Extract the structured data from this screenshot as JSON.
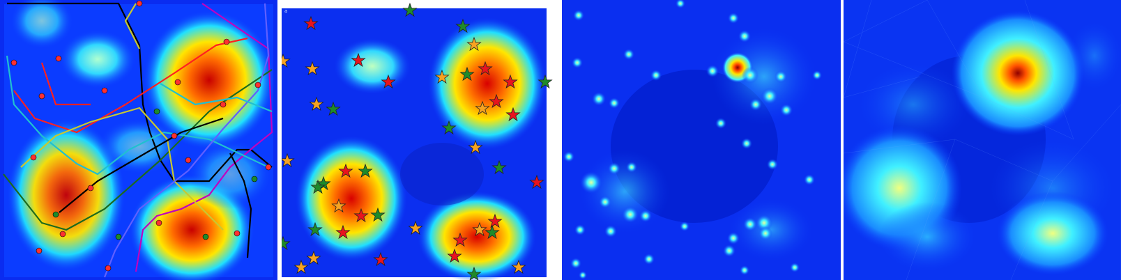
{
  "figure": {
    "panels": [
      {
        "id": "p1",
        "kind": "heatmap-with-transit-lines",
        "palette": "jet"
      },
      {
        "id": "p2",
        "kind": "heatmap-with-star-markers",
        "palette": "jet",
        "corner_text": "a"
      },
      {
        "id": "p3",
        "kind": "point-density-heatmap",
        "palette": "blue-to-cyan"
      },
      {
        "id": "p4",
        "kind": "triangulated-density-heatmap",
        "palette": "blue-to-cyan"
      }
    ],
    "colors": {
      "deep_blue": "#0010c8",
      "blue": "#0b3cff",
      "cyan": "#20e0ff",
      "yellow": "#ffe600",
      "orange": "#ff8c00",
      "red": "#d40000",
      "star_red": "#e8141e",
      "star_orange": "#f7a321",
      "star_green": "#1f8a2a"
    },
    "icons": [
      "star-marker-icon",
      "pin-marker-icon"
    ]
  }
}
